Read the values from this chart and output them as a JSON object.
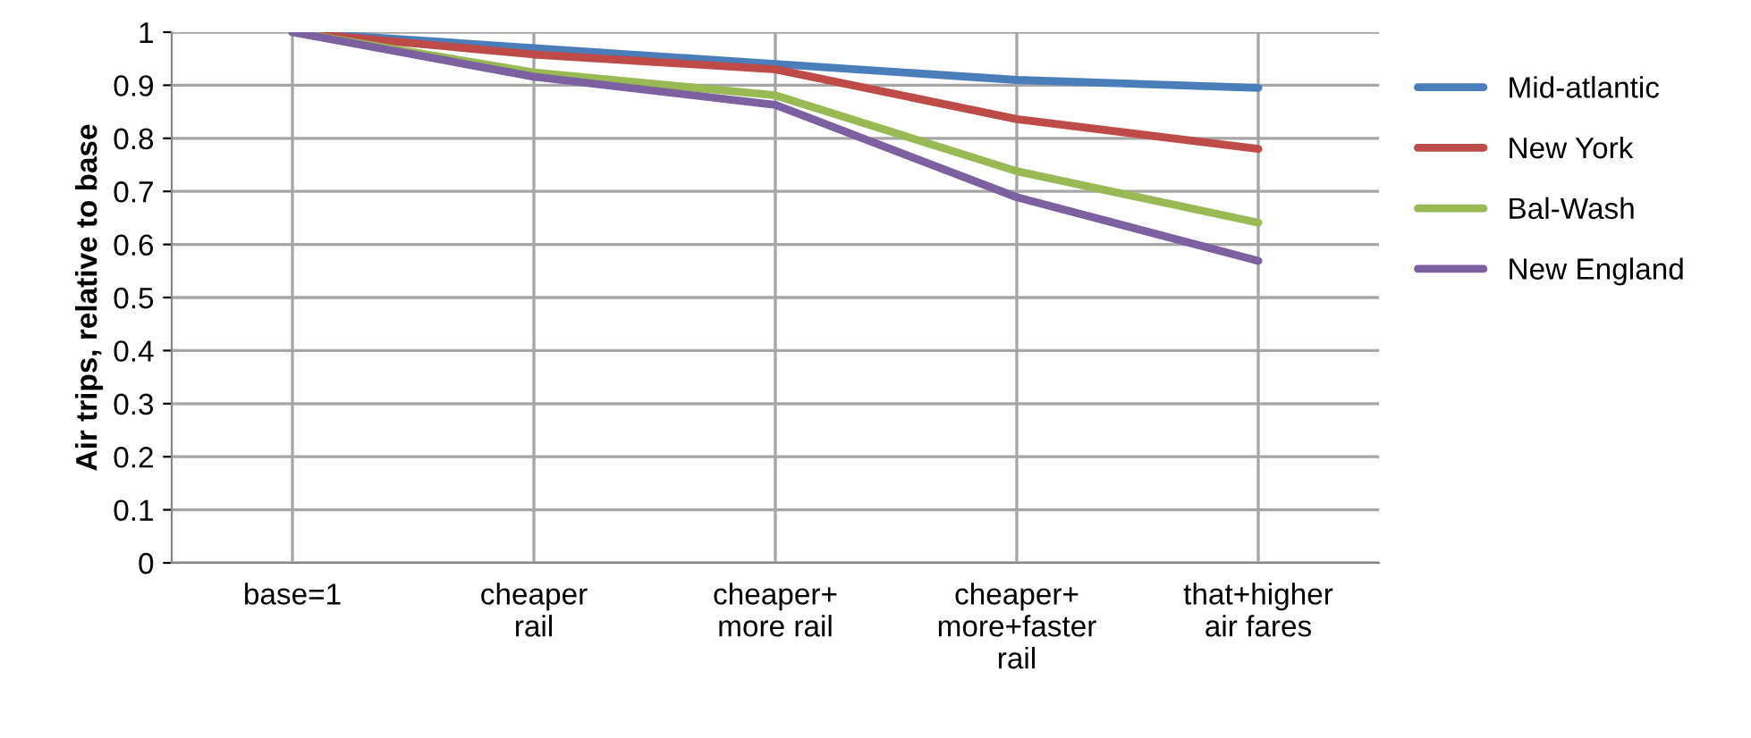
{
  "chart_data": {
    "type": "line",
    "ylabel": "Air trips, relative to base",
    "categories": [
      "base=1",
      "cheaper\nrail",
      "cheaper+\nmore rail",
      "cheaper+\nmore+faster\nrail",
      "that+higher\nair fares"
    ],
    "series": [
      {
        "name": "Mid-atlantic",
        "color": "#4a7ebb",
        "values": [
          1,
          0.97,
          0.94,
          0.91,
          0.895
        ]
      },
      {
        "name": "New York",
        "color": "#be4b48",
        "values": [
          1,
          0.958,
          0.93,
          0.836,
          0.78
        ]
      },
      {
        "name": "Bal-Wash",
        "color": "#98b954",
        "values": [
          1,
          0.924,
          0.881,
          0.738,
          0.641
        ]
      },
      {
        "name": "New England",
        "color": "#7d60a0",
        "values": [
          1,
          0.916,
          0.863,
          0.689,
          0.569
        ]
      }
    ],
    "ylim": [
      0,
      1
    ],
    "yticks": [
      0,
      0.1,
      0.2,
      0.3,
      0.4,
      0.5,
      0.6,
      0.7,
      0.8,
      0.9,
      1
    ],
    "grid": true,
    "legend": "right",
    "marker": "none",
    "line_style": "solid"
  }
}
